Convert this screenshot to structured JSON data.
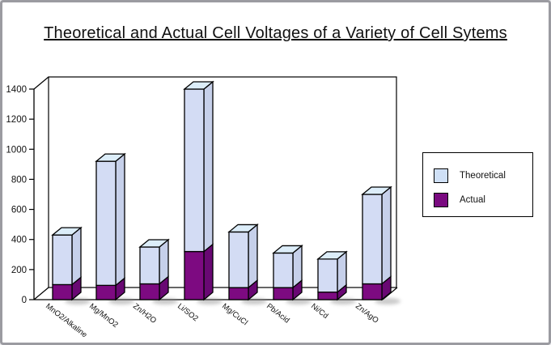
{
  "title": "Theoretical and Actual Cell Voltages of a Variety of Cell Sytems",
  "legend": {
    "items": [
      {
        "label": "Theoretical",
        "color": "#cfe0f6"
      },
      {
        "label": "Actual",
        "color": "#7a0a80"
      }
    ]
  },
  "chart_data": {
    "type": "bar",
    "projection": "3d-oblique",
    "stacked_overlay": true,
    "note": "Theoretical values are the full bar heights (light blue tops); Actual values are the purple lower segments overlaid from 0.",
    "title": "Theoretical and Actual Cell Voltages of a Variety of Cell Sytems",
    "categories": [
      "MnO2/Alkaline",
      "Mg/MnO2",
      "Zn/H2O",
      "Li/SO2",
      "Mg/CuCl",
      "Pb/Acid",
      "Ni/Cd",
      "Zn/AgO"
    ],
    "series": [
      {
        "name": "Theoretical",
        "values": [
          430,
          920,
          350,
          1400,
          450,
          310,
          270,
          700
        ]
      },
      {
        "name": "Actual",
        "values": [
          100,
          95,
          105,
          320,
          80,
          80,
          50,
          105
        ]
      }
    ],
    "xlabel": "",
    "ylabel": "",
    "ylim": [
      0,
      1400
    ],
    "yticks": [
      0,
      200,
      400,
      600,
      800,
      1000,
      1200,
      1400
    ],
    "grid": false,
    "legend_position": "right",
    "colors": {
      "theoretical_front": "#d3dcf4",
      "theoretical_side": "#c6d0ea",
      "theoretical_top": "#dcedf9",
      "actual_front": "#7d0a81",
      "actual_side": "#690873",
      "outline": "#000000",
      "axis": "#000000"
    }
  }
}
